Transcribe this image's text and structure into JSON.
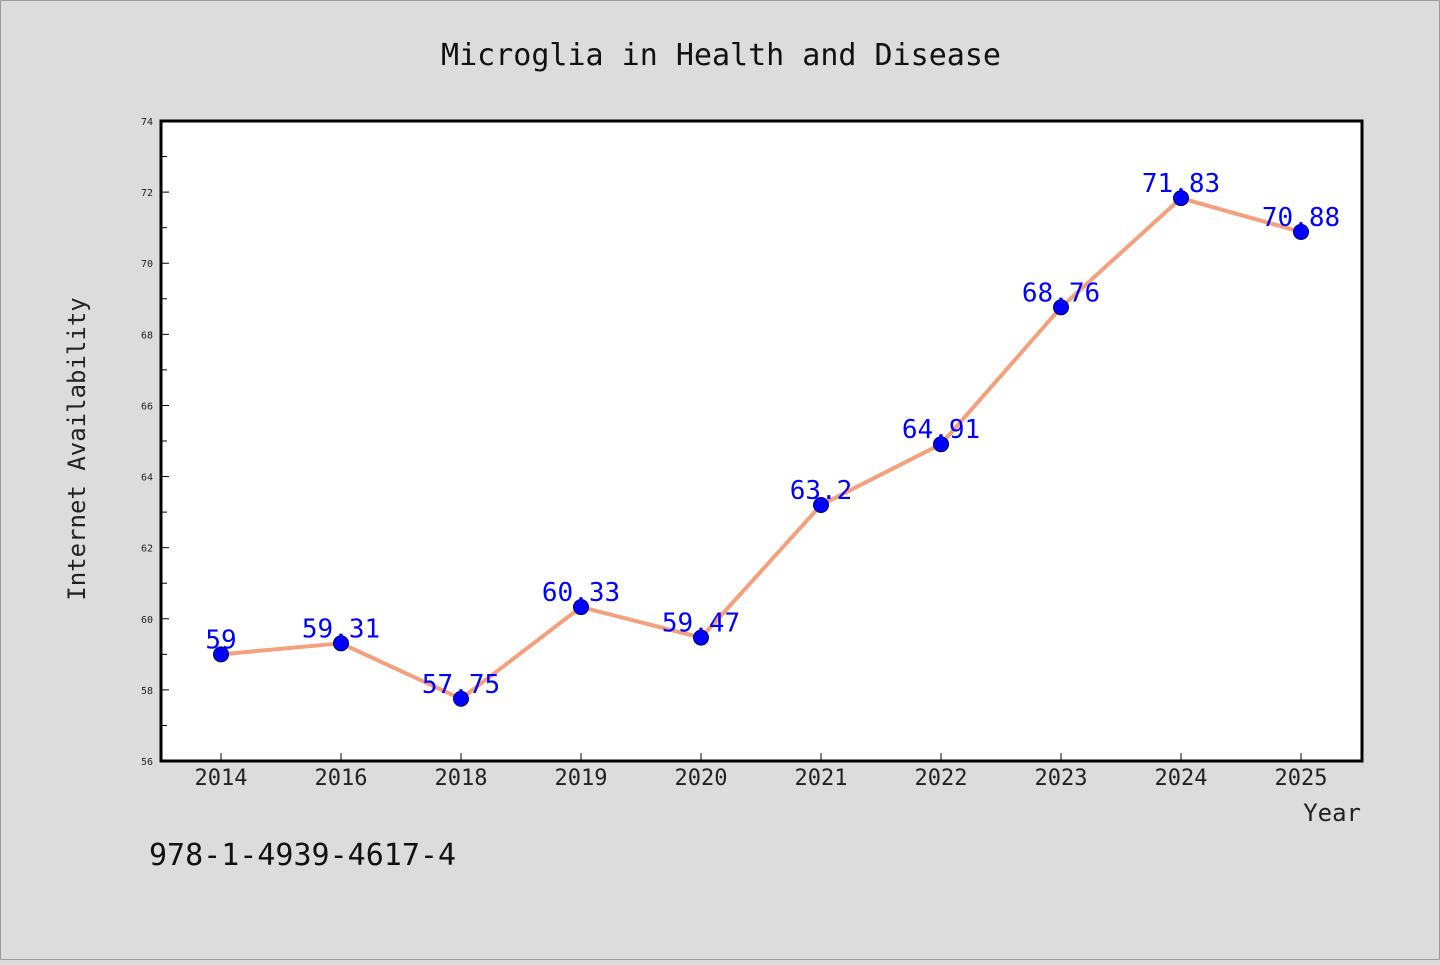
{
  "chart_data": {
    "type": "line",
    "title": "Microglia in Health and Disease",
    "xlabel": "Year",
    "ylabel": "Internet Availability",
    "categories": [
      "2014",
      "2016",
      "2018",
      "2019",
      "2020",
      "2021",
      "2022",
      "2023",
      "2024",
      "2025"
    ],
    "series": [
      {
        "values": [
          59,
          59.31,
          57.75,
          60.33,
          59.47,
          63.2,
          64.91,
          68.76,
          71.83,
          70.88
        ]
      }
    ],
    "data_labels": [
      "59",
      "59.31",
      "57.75",
      "60.33",
      "59.47",
      "63.2",
      "64.91",
      "68.76",
      "71.83",
      "70.88"
    ],
    "ylim": [
      56,
      74
    ],
    "yticks": [
      "56",
      "58",
      "60",
      "62",
      "64",
      "66",
      "68",
      "70",
      "72",
      "74"
    ],
    "grid": false,
    "line_color": "#f4a07c",
    "marker_color": "#0000ff",
    "label_color": "#0000ff"
  },
  "footer_text": "978-1-4939-4617-4"
}
